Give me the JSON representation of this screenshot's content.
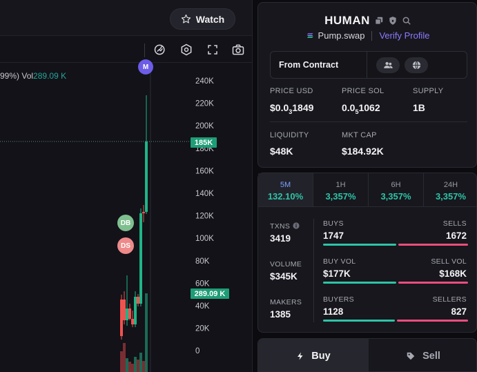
{
  "header": {
    "watch_label": "Watch"
  },
  "toolbar": {
    "icons": [
      "indicator-icon",
      "settings-icon",
      "fullscreen-icon",
      "camera-icon"
    ]
  },
  "chart": {
    "legend_prefix": "99%)",
    "legend_vol_label": "Vol",
    "legend_vol_value": "289.09 K",
    "current_price_tag": "185K",
    "volume_tag": "289.09 K",
    "markers": {
      "db": "DB",
      "ds": "DS",
      "m": "M"
    }
  },
  "chart_data": {
    "type": "candlestick",
    "y_ticks": [
      "240K",
      "220K",
      "200K",
      "180K",
      "160K",
      "140K",
      "120K",
      "100K",
      "80K",
      "60K",
      "40K",
      "20K",
      "0"
    ],
    "ylim": [
      0,
      240000
    ],
    "current_price": 185000
  },
  "token": {
    "name": "HUMAN",
    "platform": "Pump.swap",
    "verify": "Verify Profile",
    "contract_label": "From Contract"
  },
  "stats": {
    "price_usd_label": "PRICE USD",
    "price_usd_prefix": "$0.0",
    "price_usd_sub": "3",
    "price_usd_rest": "1849",
    "price_sol_label": "PRICE SOL",
    "price_sol_prefix": "0.0",
    "price_sol_sub": "5",
    "price_sol_rest": "1062",
    "supply_label": "SUPPLY",
    "supply_value": "1B",
    "liquidity_label": "LIQUIDITY",
    "liquidity_value": "$48K",
    "mktcap_label": "MKT CAP",
    "mktcap_value": "$184.92K"
  },
  "timeframes": [
    {
      "label": "5M",
      "pct": "132.10%"
    },
    {
      "label": "1H",
      "pct": "3,357%"
    },
    {
      "label": "6H",
      "pct": "3,357%"
    },
    {
      "label": "24H",
      "pct": "3,357%"
    }
  ],
  "metrics": {
    "txns_label": "TXNS",
    "txns_value": "3419",
    "volume_label": "VOLUME",
    "volume_value": "$345K",
    "makers_label": "MAKERS",
    "makers_value": "1385",
    "buys_label": "BUYS",
    "buys_value": "1747",
    "sells_label": "SELLS",
    "sells_value": "1672",
    "buy_vol_label": "BUY VOL",
    "buy_vol_value": "$177K",
    "sell_vol_label": "SELL VOL",
    "sell_vol_value": "$168K",
    "buyers_label": "BUYERS",
    "buyers_value": "1128",
    "sellers_label": "SELLERS",
    "sellers_value": "827"
  },
  "trade_tabs": {
    "buy": "Buy",
    "sell": "Sell"
  },
  "colors": {
    "up": "#26a69a",
    "down": "#ef5350",
    "accent": "#8b7bff"
  }
}
